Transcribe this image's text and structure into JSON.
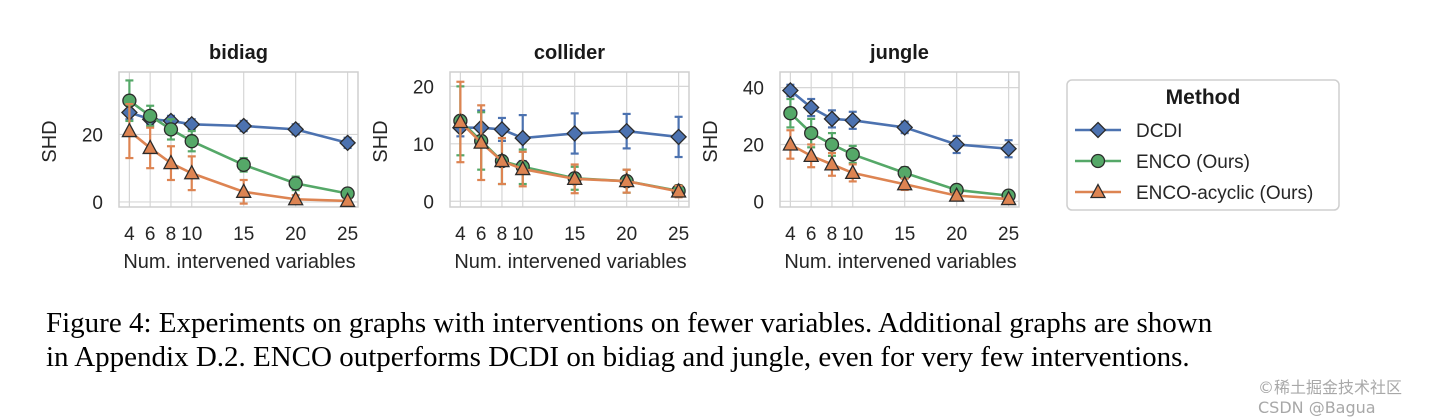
{
  "chart_data": [
    {
      "type": "line",
      "title": "bidiag",
      "xlabel": "Num. intervened variables",
      "ylabel": "SHD",
      "x": [
        4,
        6,
        8,
        10,
        15,
        20,
        25
      ],
      "xticks": [
        "4",
        "6",
        "8",
        "10",
        "15",
        "20",
        "25"
      ],
      "yticks": [
        0,
        20
      ],
      "xlim": [
        3,
        26
      ],
      "ylim": [
        -1.5,
        38.5
      ],
      "grid": true,
      "series": [
        {
          "name": "DCDI",
          "marker": "diamond",
          "color": "#4c72b0",
          "values": [
            26.5,
            24.5,
            24,
            23,
            22.5,
            21.5,
            17.5
          ],
          "errors": [
            2,
            1.5,
            1.5,
            1.5,
            1.5,
            1.5,
            1.5
          ]
        },
        {
          "name": "ENCO (Ours)",
          "marker": "circle",
          "color": "#55a868",
          "values": [
            30,
            25.5,
            21.5,
            18,
            11,
            5.5,
            2.5
          ],
          "errors": [
            6,
            3,
            3,
            3,
            2,
            2,
            1
          ]
        },
        {
          "name": "ENCO-acyclic (Ours)",
          "marker": "triangle",
          "color": "#dd8452",
          "values": [
            21,
            16,
            11.5,
            8.5,
            3,
            0.8,
            0.3
          ],
          "errors": [
            8,
            6,
            5,
            5,
            3.5,
            1.2,
            0.5
          ]
        }
      ]
    },
    {
      "type": "line",
      "title": "collider",
      "xlabel": "Num. intervened variables",
      "ylabel": "SHD",
      "x": [
        4,
        6,
        8,
        10,
        15,
        20,
        25
      ],
      "xticks": [
        "4",
        "6",
        "8",
        "10",
        "15",
        "20",
        "25"
      ],
      "yticks": [
        0,
        10,
        20
      ],
      "xlim": [
        3,
        26
      ],
      "ylim": [
        -1,
        22.5
      ],
      "grid": true,
      "series": [
        {
          "name": "DCDI",
          "marker": "diamond",
          "color": "#4c72b0",
          "values": [
            12.8,
            12.8,
            12.5,
            11,
            11.8,
            12.2,
            11.2
          ],
          "errors": [
            1.5,
            3,
            2,
            4,
            3.5,
            3,
            3.5
          ]
        },
        {
          "name": "ENCO (Ours)",
          "marker": "circle",
          "color": "#55a868",
          "values": [
            14,
            10.5,
            7,
            6,
            4,
            3.5,
            1.8
          ],
          "errors": [
            6,
            5,
            4,
            3,
            2,
            2,
            1
          ]
        },
        {
          "name": "ENCO-acyclic (Ours)",
          "marker": "triangle",
          "color": "#dd8452",
          "values": [
            13.8,
            10.2,
            7,
            5.6,
            3.9,
            3.5,
            1.7
          ],
          "errors": [
            7,
            6.5,
            4,
            3,
            2.5,
            2,
            1
          ]
        }
      ]
    },
    {
      "type": "line",
      "title": "jungle",
      "xlabel": "Num. intervened variables",
      "ylabel": "SHD",
      "x": [
        4,
        6,
        8,
        10,
        15,
        20,
        25
      ],
      "xticks": [
        "4",
        "6",
        "8",
        "10",
        "15",
        "20",
        "25"
      ],
      "yticks": [
        0,
        20,
        40
      ],
      "xlim": [
        3,
        26
      ],
      "ylim": [
        -2,
        45.5
      ],
      "grid": true,
      "series": [
        {
          "name": "DCDI",
          "marker": "diamond",
          "color": "#4c72b0",
          "values": [
            39,
            33,
            29,
            28.5,
            26,
            20,
            18.5
          ],
          "errors": [
            2,
            3,
            3,
            3,
            2,
            3,
            3
          ]
        },
        {
          "name": "ENCO (Ours)",
          "marker": "circle",
          "color": "#55a868",
          "values": [
            31,
            24,
            20,
            16.5,
            10,
            4,
            2
          ],
          "errors": [
            5,
            5,
            4,
            3,
            2,
            1.5,
            1
          ]
        },
        {
          "name": "ENCO-acyclic (Ours)",
          "marker": "triangle",
          "color": "#dd8452",
          "values": [
            20,
            16,
            13,
            10,
            6,
            2,
            0.8
          ],
          "errors": [
            5,
            4,
            4,
            3,
            2,
            1,
            0.5
          ]
        }
      ]
    }
  ],
  "legend": {
    "title": "Method",
    "placement": "right",
    "entries": [
      "DCDI",
      "ENCO (Ours)",
      "ENCO-acyclic (Ours)"
    ]
  },
  "caption": {
    "line1": "Figure 4: Experiments on graphs with interventions on fewer variables. Additional graphs are shown",
    "line2": "in Appendix D.2. ENCO outperforms DCDI on bidiag and jungle, even for very few interventions."
  },
  "watermark": "©稀土掘金技术社区 CSDN @Bagua"
}
